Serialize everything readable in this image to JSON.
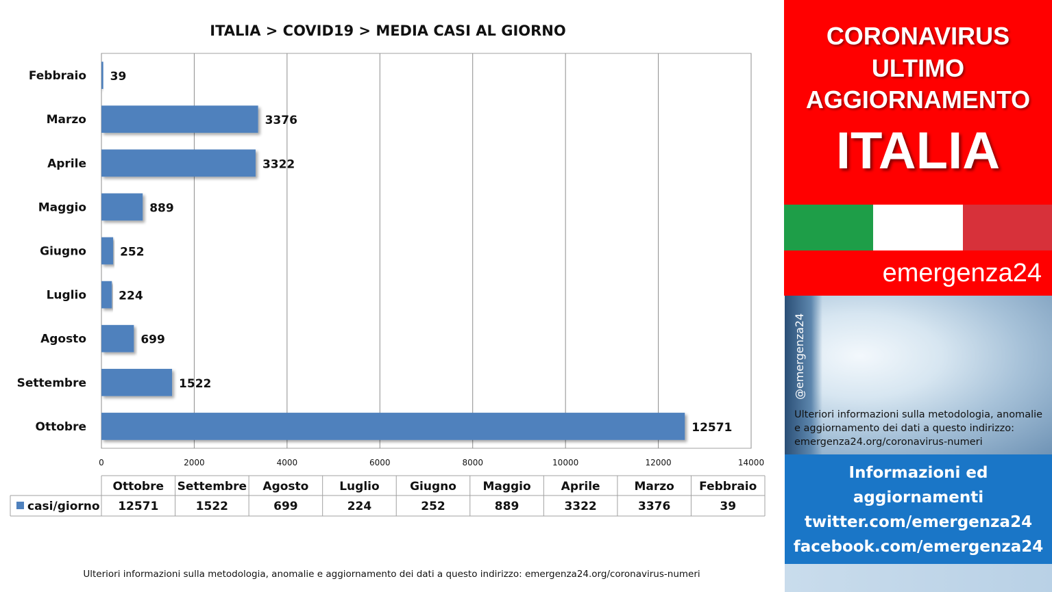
{
  "chart_data": {
    "type": "bar",
    "orientation": "horizontal",
    "title": "ITALIA >  COVID19 > MEDIA CASI AL GIORNO",
    "categories": [
      "Febbraio",
      "Marzo",
      "Aprile",
      "Maggio",
      "Giugno",
      "Luglio",
      "Agosto",
      "Settembre",
      "Ottobre"
    ],
    "series": [
      {
        "name": "casi/giorno",
        "values": [
          39,
          3376,
          3322,
          889,
          252,
          224,
          699,
          1522,
          12571
        ],
        "color": "#4f81bd"
      }
    ],
    "xlim": [
      0,
      14000
    ],
    "xticks": [
      "0",
      "2000",
      "4000",
      "6000",
      "8000",
      "10000",
      "12000",
      "14000"
    ],
    "grid": true,
    "data_table": {
      "columns": [
        "Ottobre",
        "Settembre",
        "Agosto",
        "Luglio",
        "Giugno",
        "Maggio",
        "Aprile",
        "Marzo",
        "Febbraio"
      ],
      "row_label": "casi/giorno",
      "values": [
        "12571",
        "1522",
        "699",
        "224",
        "252",
        "889",
        "3322",
        "3376",
        "39"
      ]
    }
  },
  "footer_note": "Ulteriori informazioni sulla metodologia, anomalie e aggiornamento dei dati a questo indirizzo: emergenza24.org/coronavirus-numeri",
  "side_panel": {
    "headline_line1": "CORONAVIRUS",
    "headline_line2": "ULTIMO",
    "headline_line3": "AGGIORNAMENTO",
    "headline_country": "ITALIA",
    "flag_colors": [
      "#1e9e48",
      "#ffffff",
      "#d7313a"
    ],
    "brand": "emergenza24",
    "handle": "@emergenza24",
    "photo_note": "Ulteriori informazioni sulla metodologia, anomalie e aggiornamento dei dati a questo indirizzo: emergenza24.org/coronavirus-numeri",
    "info_lines": [
      "Informazioni ed",
      "aggiornamenti",
      "twitter.com/emergenza24",
      "facebook.com/emergenza24"
    ]
  },
  "colors": {
    "bar": "#4f81bd",
    "red": "#ff0000",
    "blue": "#1a76c7"
  }
}
